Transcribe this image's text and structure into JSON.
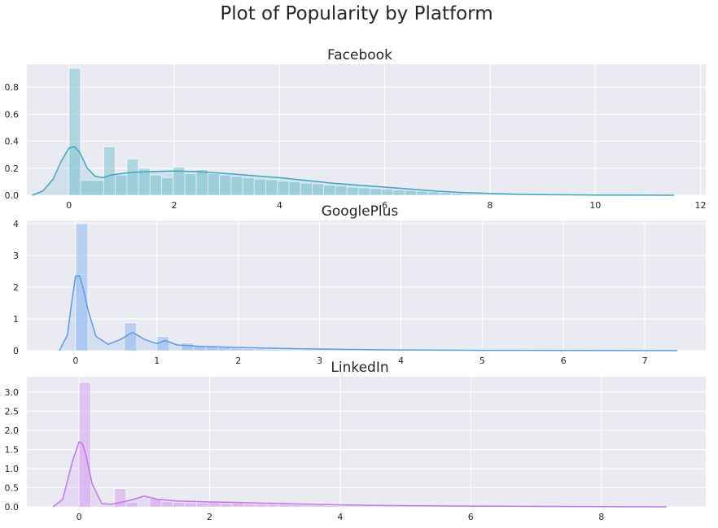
{
  "figure": {
    "title": "Plot of Popularity by Platform"
  },
  "chart_data": [
    {
      "type": "histogram-kde",
      "title": "Facebook",
      "color": "#3ea6bf",
      "bar_color": "#87c6d6",
      "xlim": [
        -0.8,
        12.1
      ],
      "ylim": [
        0,
        0.97
      ],
      "xticks": [
        0,
        2,
        4,
        6,
        8,
        10,
        12
      ],
      "xtick_labels": [
        "0",
        "2",
        "4",
        "6",
        "8",
        "10",
        "12"
      ],
      "yticks": [
        0,
        0.2,
        0.4,
        0.6,
        0.8
      ],
      "ytick_labels": [
        "0.0",
        "0.2",
        "0.4",
        "0.6",
        "0.8"
      ],
      "grid": true,
      "bins": [
        {
          "x0": 0.0,
          "x1": 0.22,
          "y": 0.94
        },
        {
          "x0": 0.22,
          "x1": 0.66,
          "y": 0.11
        },
        {
          "x0": 0.66,
          "x1": 0.88,
          "y": 0.36
        },
        {
          "x0": 0.88,
          "x1": 1.1,
          "y": 0.15
        },
        {
          "x0": 1.1,
          "x1": 1.32,
          "y": 0.27
        },
        {
          "x0": 1.32,
          "x1": 1.54,
          "y": 0.2
        },
        {
          "x0": 1.54,
          "x1": 1.76,
          "y": 0.15
        },
        {
          "x0": 1.76,
          "x1": 1.98,
          "y": 0.13
        },
        {
          "x0": 1.98,
          "x1": 2.2,
          "y": 0.21
        },
        {
          "x0": 2.2,
          "x1": 2.42,
          "y": 0.16
        },
        {
          "x0": 2.42,
          "x1": 2.64,
          "y": 0.19
        },
        {
          "x0": 2.64,
          "x1": 2.86,
          "y": 0.16
        },
        {
          "x0": 2.86,
          "x1": 3.08,
          "y": 0.15
        },
        {
          "x0": 3.08,
          "x1": 3.3,
          "y": 0.14
        },
        {
          "x0": 3.3,
          "x1": 3.52,
          "y": 0.13
        },
        {
          "x0": 3.52,
          "x1": 3.74,
          "y": 0.12
        },
        {
          "x0": 3.74,
          "x1": 3.96,
          "y": 0.115
        },
        {
          "x0": 3.96,
          "x1": 4.18,
          "y": 0.105
        },
        {
          "x0": 4.18,
          "x1": 4.4,
          "y": 0.1
        },
        {
          "x0": 4.4,
          "x1": 4.62,
          "y": 0.09
        },
        {
          "x0": 4.62,
          "x1": 4.84,
          "y": 0.085
        },
        {
          "x0": 4.84,
          "x1": 5.06,
          "y": 0.075
        },
        {
          "x0": 5.06,
          "x1": 5.28,
          "y": 0.07
        },
        {
          "x0": 5.28,
          "x1": 5.5,
          "y": 0.06
        },
        {
          "x0": 5.5,
          "x1": 5.72,
          "y": 0.055
        },
        {
          "x0": 5.72,
          "x1": 5.94,
          "y": 0.05
        },
        {
          "x0": 5.94,
          "x1": 6.16,
          "y": 0.045
        },
        {
          "x0": 6.16,
          "x1": 6.38,
          "y": 0.04
        },
        {
          "x0": 6.38,
          "x1": 6.6,
          "y": 0.035
        },
        {
          "x0": 6.6,
          "x1": 6.82,
          "y": 0.03
        },
        {
          "x0": 6.82,
          "x1": 7.04,
          "y": 0.025
        },
        {
          "x0": 7.04,
          "x1": 7.26,
          "y": 0.02
        },
        {
          "x0": 7.26,
          "x1": 7.48,
          "y": 0.015
        },
        {
          "x0": 7.48,
          "x1": 7.7,
          "y": 0.01
        }
      ],
      "kde": {
        "x": [
          -0.7,
          -0.5,
          -0.3,
          -0.15,
          0.0,
          0.1,
          0.2,
          0.35,
          0.5,
          0.65,
          0.8,
          1.0,
          1.2,
          1.5,
          2.0,
          2.5,
          3.0,
          3.5,
          4.0,
          4.5,
          5.0,
          5.5,
          6.0,
          6.5,
          7.0,
          7.5,
          8.0,
          8.5,
          9.0,
          9.5,
          10.0,
          10.5,
          11.0,
          11.5
        ],
        "y": [
          0.0,
          0.03,
          0.12,
          0.25,
          0.35,
          0.36,
          0.32,
          0.2,
          0.14,
          0.13,
          0.15,
          0.16,
          0.17,
          0.175,
          0.18,
          0.175,
          0.16,
          0.145,
          0.13,
          0.11,
          0.09,
          0.075,
          0.06,
          0.045,
          0.03,
          0.02,
          0.013,
          0.008,
          0.005,
          0.003,
          0.002,
          0.001,
          0.0005,
          0.0
        ]
      }
    },
    {
      "type": "histogram-kde",
      "title": "GooglePlus",
      "color": "#5b9ae6",
      "bar_color": "#9abdf1",
      "xlim": [
        -0.6,
        7.75
      ],
      "ylim": [
        0,
        4.1
      ],
      "xticks": [
        0,
        1,
        2,
        3,
        4,
        5,
        6,
        7
      ],
      "xtick_labels": [
        "0",
        "1",
        "2",
        "3",
        "4",
        "5",
        "6",
        "7"
      ],
      "yticks": [
        0,
        1,
        2,
        3,
        4
      ],
      "ytick_labels": [
        "0",
        "1",
        "2",
        "3",
        "4"
      ],
      "grid": true,
      "bins": [
        {
          "x0": 0.0,
          "x1": 0.15,
          "y": 4.0
        },
        {
          "x0": 0.6,
          "x1": 0.75,
          "y": 0.88
        },
        {
          "x0": 1.0,
          "x1": 1.15,
          "y": 0.45
        },
        {
          "x0": 1.3,
          "x1": 1.45,
          "y": 0.25
        },
        {
          "x0": 1.45,
          "x1": 1.6,
          "y": 0.15
        },
        {
          "x0": 1.6,
          "x1": 1.75,
          "y": 0.12
        },
        {
          "x0": 1.75,
          "x1": 1.9,
          "y": 0.1
        },
        {
          "x0": 1.9,
          "x1": 2.05,
          "y": 0.08
        },
        {
          "x0": 2.05,
          "x1": 2.2,
          "y": 0.06
        },
        {
          "x0": 2.2,
          "x1": 2.35,
          "y": 0.05
        },
        {
          "x0": 2.35,
          "x1": 2.5,
          "y": 0.04
        },
        {
          "x0": 2.5,
          "x1": 2.65,
          "y": 0.03
        },
        {
          "x0": 2.65,
          "x1": 2.8,
          "y": 0.02
        }
      ],
      "kde": {
        "x": [
          -0.2,
          -0.1,
          -0.05,
          0.0,
          0.05,
          0.1,
          0.15,
          0.25,
          0.4,
          0.55,
          0.7,
          0.85,
          1.0,
          1.1,
          1.25,
          1.5,
          2.0,
          2.5,
          3.0,
          3.5,
          4.0,
          5.0,
          6.0,
          7.0,
          7.4
        ],
        "y": [
          0.0,
          0.5,
          1.5,
          2.35,
          2.35,
          1.9,
          1.3,
          0.45,
          0.2,
          0.35,
          0.58,
          0.35,
          0.22,
          0.32,
          0.18,
          0.14,
          0.1,
          0.07,
          0.05,
          0.035,
          0.02,
          0.01,
          0.005,
          0.002,
          0.0
        ]
      }
    },
    {
      "type": "histogram-kde",
      "title": "LinkedIn",
      "color": "#c176ea",
      "bar_color": "#d7a9f0",
      "xlim": [
        -0.8,
        9.6
      ],
      "ylim": [
        0,
        3.4
      ],
      "xticks": [
        0,
        2,
        4,
        6,
        8
      ],
      "xtick_labels": [
        "0",
        "2",
        "4",
        "6",
        "8"
      ],
      "yticks": [
        0,
        0.5,
        1.0,
        1.5,
        2.0,
        2.5,
        3.0
      ],
      "ytick_labels": [
        "0.0",
        "0.5",
        "1.0",
        "1.5",
        "2.0",
        "2.5",
        "3.0"
      ],
      "grid": true,
      "bins": [
        {
          "x0": 0.0,
          "x1": 0.18,
          "y": 3.25
        },
        {
          "x0": 0.54,
          "x1": 0.72,
          "y": 0.48
        },
        {
          "x0": 0.72,
          "x1": 0.9,
          "y": 0.12
        },
        {
          "x0": 1.08,
          "x1": 1.26,
          "y": 0.22
        },
        {
          "x0": 1.26,
          "x1": 1.44,
          "y": 0.14
        },
        {
          "x0": 1.44,
          "x1": 1.62,
          "y": 0.12
        },
        {
          "x0": 1.62,
          "x1": 1.8,
          "y": 0.11
        },
        {
          "x0": 1.8,
          "x1": 1.98,
          "y": 0.1
        },
        {
          "x0": 1.98,
          "x1": 2.16,
          "y": 0.13
        },
        {
          "x0": 2.16,
          "x1": 2.34,
          "y": 0.09
        },
        {
          "x0": 2.34,
          "x1": 2.52,
          "y": 0.1
        },
        {
          "x0": 2.52,
          "x1": 2.7,
          "y": 0.08
        },
        {
          "x0": 2.7,
          "x1": 2.88,
          "y": 0.07
        },
        {
          "x0": 2.88,
          "x1": 3.06,
          "y": 0.06
        },
        {
          "x0": 3.06,
          "x1": 3.24,
          "y": 0.06
        },
        {
          "x0": 3.24,
          "x1": 3.42,
          "y": 0.05
        },
        {
          "x0": 3.42,
          "x1": 3.6,
          "y": 0.04
        },
        {
          "x0": 3.6,
          "x1": 3.78,
          "y": 0.04
        },
        {
          "x0": 3.78,
          "x1": 3.96,
          "y": 0.03
        }
      ],
      "kde": {
        "x": [
          -0.4,
          -0.25,
          -0.1,
          0.0,
          0.05,
          0.1,
          0.2,
          0.35,
          0.5,
          0.65,
          0.8,
          1.0,
          1.2,
          1.5,
          2.0,
          2.5,
          3.0,
          3.5,
          4.0,
          5.0,
          6.0,
          7.0,
          8.0,
          9.0
        ],
        "y": [
          0.0,
          0.2,
          1.2,
          1.7,
          1.65,
          1.4,
          0.6,
          0.08,
          0.07,
          0.12,
          0.18,
          0.28,
          0.2,
          0.15,
          0.13,
          0.11,
          0.09,
          0.07,
          0.05,
          0.03,
          0.02,
          0.01,
          0.005,
          0.0
        ]
      }
    }
  ]
}
